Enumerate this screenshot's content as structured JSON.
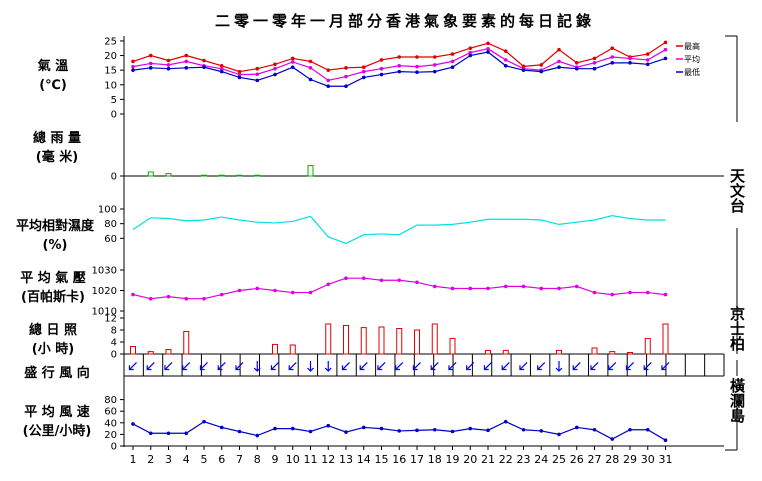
{
  "title": "二零一零年一月部分香港氣象要素的每日記錄",
  "colors": {
    "max_temp": "#e00000",
    "mean_temp": "#e000e0",
    "min_temp": "#0000c8",
    "rainfall": "#00b000",
    "humidity": "#00e0e0",
    "pressure": "#e000e0",
    "sunshine": "#e00000",
    "wind_dir": "#0000ff",
    "wind_speed": "#0000c8",
    "axis": "#000000"
  },
  "panel_labels": {
    "temperature": [
      "氣 溫",
      "(℃)"
    ],
    "rainfall": [
      "總 雨 量",
      "(毫 米)"
    ],
    "humidity": [
      "平均相對濕度",
      "(%)"
    ],
    "pressure": [
      "平 均 氣 壓",
      "(百帕斯卡)"
    ],
    "sunshine": [
      "總 日 照",
      "(小 時)"
    ],
    "wind_dir": [
      "盛 行 風 向"
    ],
    "wind_speed": [
      "平 均 風 速",
      "(公里/小時)"
    ]
  },
  "station_labels": {
    "observatory": "天文台",
    "kings_park": "京士柏",
    "waglan": "橫瀾島"
  },
  "legend": {
    "max": "最高",
    "mean": "平均",
    "min": "最低"
  },
  "chart_data": {
    "type": "line",
    "x": [
      1,
      2,
      3,
      4,
      5,
      6,
      7,
      8,
      9,
      10,
      11,
      12,
      13,
      14,
      15,
      16,
      17,
      18,
      19,
      20,
      21,
      22,
      23,
      24,
      25,
      26,
      27,
      28,
      29,
      30,
      31
    ],
    "x_tick_labels": [
      "1",
      "2",
      "3",
      "4",
      "5",
      "6",
      "7",
      "8",
      "9",
      "10",
      "11",
      "12",
      "13",
      "14",
      "15",
      "16",
      "17",
      "18",
      "19",
      "20",
      "21",
      "22",
      "23",
      "24",
      "25",
      "26",
      "27",
      "28",
      "29",
      "30",
      "31"
    ],
    "temperature": {
      "ylim": [
        0,
        26
      ],
      "ticks": [
        "0",
        "5",
        "10",
        "15",
        "20",
        "25"
      ],
      "series": [
        {
          "name": "最高",
          "values": [
            18.0,
            20.0,
            18.3,
            20.0,
            18.3,
            16.5,
            14.5,
            15.5,
            17.0,
            19.0,
            18.0,
            15.0,
            15.8,
            16.0,
            18.5,
            19.5,
            19.5,
            19.5,
            20.5,
            22.5,
            24.2,
            21.5,
            16.3,
            16.8,
            22.0,
            17.5,
            19.0,
            22.5,
            19.5,
            20.5,
            24.5
          ]
        },
        {
          "name": "平均",
          "values": [
            16.2,
            17.3,
            16.8,
            18.0,
            16.5,
            15.5,
            13.5,
            13.6,
            15.5,
            17.8,
            15.8,
            11.5,
            12.8,
            14.5,
            15.5,
            16.5,
            16.2,
            16.8,
            18.0,
            21.0,
            22.3,
            18.5,
            15.5,
            15.0,
            18.0,
            16.0,
            17.5,
            19.5,
            19.0,
            18.5,
            22.0
          ]
        },
        {
          "name": "最低",
          "values": [
            15.0,
            15.8,
            15.5,
            15.8,
            16.0,
            14.5,
            12.5,
            11.5,
            13.5,
            16.0,
            11.8,
            9.5,
            9.5,
            12.5,
            13.5,
            14.5,
            14.3,
            14.5,
            16.0,
            20.0,
            21.2,
            16.5,
            15.0,
            14.5,
            16.0,
            15.5,
            15.5,
            17.5,
            17.5,
            17.0,
            19.0
          ]
        }
      ]
    },
    "rainfall": {
      "ylim": [
        0,
        5
      ],
      "ticks": [
        "0"
      ],
      "values": [
        0,
        0.5,
        0.3,
        0,
        0.1,
        0.1,
        0.1,
        0.1,
        0,
        0,
        1.3,
        0,
        0,
        0,
        0,
        0,
        0,
        0,
        0,
        0,
        0,
        0,
        0,
        0,
        0,
        0,
        0,
        0,
        0,
        0,
        0
      ]
    },
    "humidity": {
      "ylim": [
        40,
        100
      ],
      "ticks": [
        "60",
        "80",
        "100"
      ],
      "values": [
        72,
        88,
        87,
        84,
        85,
        89,
        85,
        82,
        81,
        83,
        90,
        62,
        53,
        65,
        66,
        65,
        78,
        78,
        79,
        82,
        86,
        86,
        86,
        85,
        79,
        82,
        85,
        91,
        87,
        85,
        85
      ]
    },
    "pressure": {
      "ylim": [
        1010,
        1030
      ],
      "ticks": [
        "1010",
        "1020",
        "1030"
      ],
      "values": [
        1018,
        1016,
        1017,
        1016,
        1016,
        1018,
        1020,
        1021,
        1020,
        1019,
        1019,
        1023,
        1026,
        1026,
        1025,
        1025,
        1024,
        1022,
        1021,
        1021,
        1021,
        1022,
        1022,
        1021,
        1021,
        1022,
        1019,
        1018,
        1019,
        1019,
        1018
      ]
    },
    "sunshine": {
      "ylim": [
        0,
        12
      ],
      "ticks": [
        "0",
        "4",
        "8",
        "12"
      ],
      "values": [
        2.5,
        0.8,
        1.5,
        7.5,
        0,
        0,
        0,
        0,
        3.2,
        3.0,
        0,
        10.0,
        9.5,
        8.8,
        9.0,
        8.5,
        8.0,
        10.0,
        5.2,
        0,
        1.2,
        1.2,
        0,
        0,
        1.2,
        0,
        2.0,
        0.8,
        0.5,
        5.2,
        10.0
      ]
    },
    "wind_dir": {
      "directions": [
        "NE",
        "NE",
        "NE",
        "NE",
        "NE",
        "NE",
        "NE",
        "N",
        "NE",
        "NE",
        "N",
        "N",
        "NE",
        "NE",
        "NE",
        "NE",
        "NE",
        "NE",
        "NE",
        "NE",
        "NE",
        "NE",
        "NE",
        "NE",
        "N",
        "NE",
        "NE",
        "NE",
        "NE",
        "NE",
        "NE"
      ]
    },
    "wind_speed": {
      "ylim": [
        0,
        100
      ],
      "ticks": [
        "0",
        "20",
        "40",
        "60",
        "80"
      ],
      "values": [
        38,
        22,
        22,
        22,
        42,
        32,
        25,
        18,
        30,
        30,
        25,
        35,
        24,
        32,
        30,
        26,
        27,
        28,
        25,
        30,
        27,
        42,
        28,
        26,
        20,
        32,
        28,
        12,
        28,
        28,
        10
      ]
    }
  }
}
